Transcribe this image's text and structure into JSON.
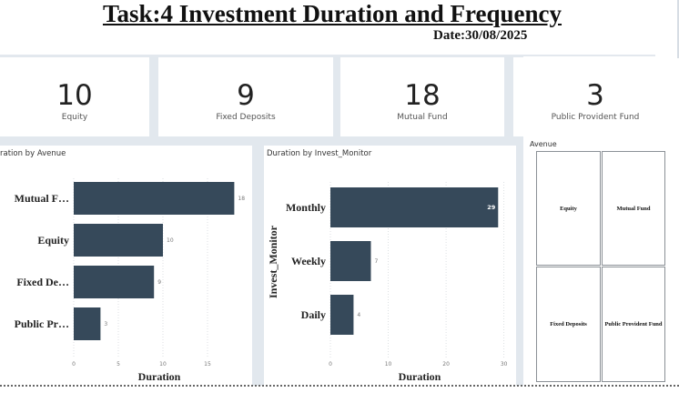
{
  "header": {
    "title": "Task:4 Investment Duration and Frequency",
    "date": "Date:30/08/2025"
  },
  "kpis": [
    {
      "value": "10",
      "label": "Equity"
    },
    {
      "value": "9",
      "label": "Fixed Deposits"
    },
    {
      "value": "18",
      "label": "Mutual Fund"
    },
    {
      "value": "3",
      "label": "Public Provident Fund"
    }
  ],
  "chart_data": [
    {
      "type": "bar",
      "orientation": "horizontal",
      "title": "Duration by Avenue",
      "title_visible": "ration by Avenue",
      "categories": [
        "Mutual F…",
        "Equity",
        "Fixed De…",
        "Public Pr…"
      ],
      "values": [
        18,
        10,
        9,
        3
      ],
      "data_labels": [
        "18",
        "10",
        "9",
        "3"
      ],
      "xlabel": "Duration",
      "ylabel": "",
      "xlim": [
        0,
        20
      ],
      "xticks": [
        "0",
        "5",
        "10",
        "15"
      ],
      "bar_color": "#36495a",
      "grid": true
    },
    {
      "type": "bar",
      "orientation": "horizontal",
      "title": "Duration by Invest_Monitor",
      "categories": [
        "Monthly",
        "Weekly",
        "Daily"
      ],
      "values": [
        29,
        7,
        4
      ],
      "data_labels": [
        "29",
        "7",
        "4"
      ],
      "xlabel": "Duration",
      "ylabel": "Invest_Monitor",
      "xlim": [
        0,
        31
      ],
      "xticks": [
        "0",
        "10",
        "20",
        "30"
      ],
      "bar_color": "#36495a",
      "grid": true
    }
  ],
  "treemap": {
    "title": "Avenue",
    "tiles": [
      "Equity",
      "Mutual Fund",
      "Fixed Deposits",
      "Public Provident Fund"
    ]
  }
}
